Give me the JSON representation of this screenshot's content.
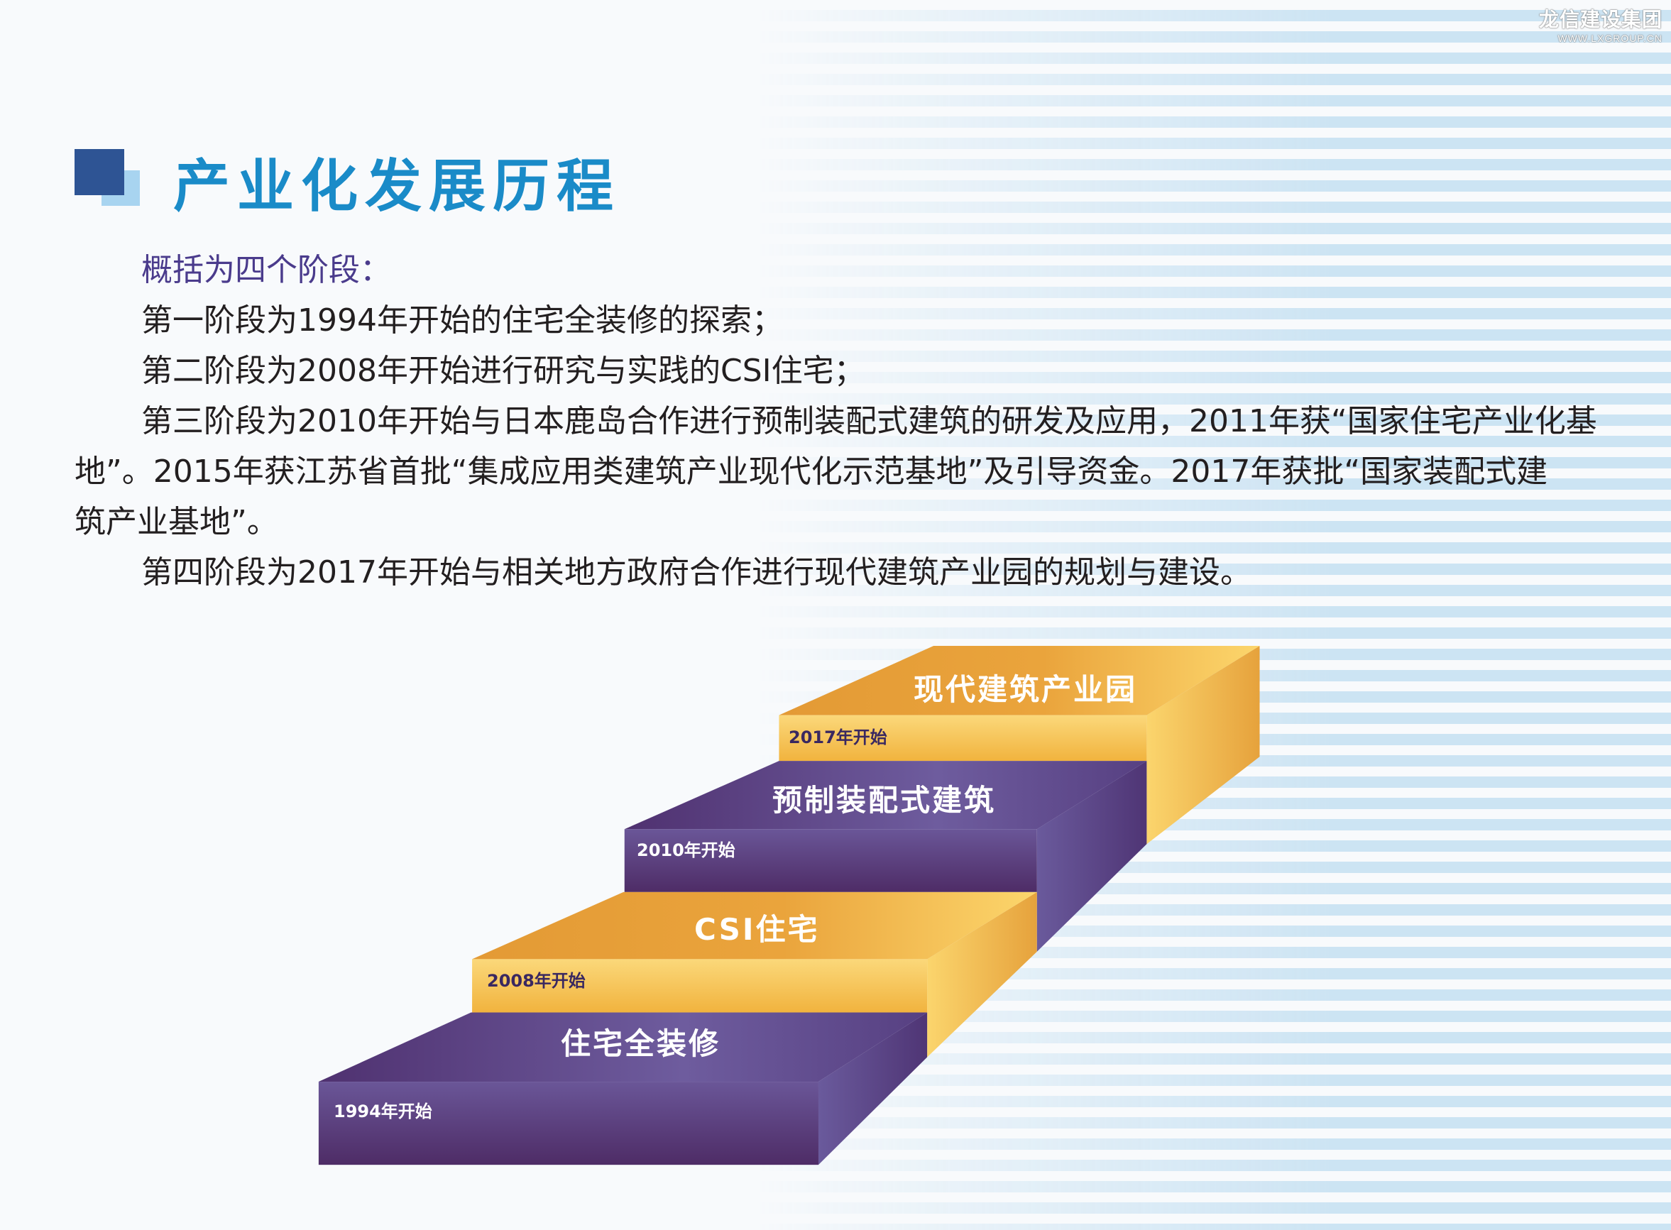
{
  "logo": {
    "name_cn": "龙信建设集团",
    "url": "WWW.LXGROUP.CN"
  },
  "title": "产业化发展历程",
  "intro": "概括为四个阶段：",
  "paragraphs": [
    "第一阶段为1994年开始的住宅全装修的探索；",
    "第二阶段为2008年开始进行研究与实践的CSI住宅；",
    "第三阶段为2010年开始与日本鹿岛合作进行预制装配式建筑的研发及应用，2011年获“国家住宅产业化基",
    "地”。2015年获江苏省首批“集成应用类建筑产业现代化示范基地”及引导资金。2017年获批“国家装配式建",
    "筑产业基地”。",
    "第四阶段为2017年开始与相关地方政府合作进行现代建筑产业园的规划与建设。"
  ],
  "steps": [
    {
      "title": "住宅全装修",
      "year": "1994年开始",
      "color": "#5a3d7e"
    },
    {
      "title": "CSI住宅",
      "year": "2008年开始",
      "color": "#f0b030"
    },
    {
      "title": "预制装配式建筑",
      "year": "2010年开始",
      "color": "#5a3d7e"
    },
    {
      "title": "现代建筑产业园",
      "year": "2017年开始",
      "color": "#f0b030"
    }
  ]
}
